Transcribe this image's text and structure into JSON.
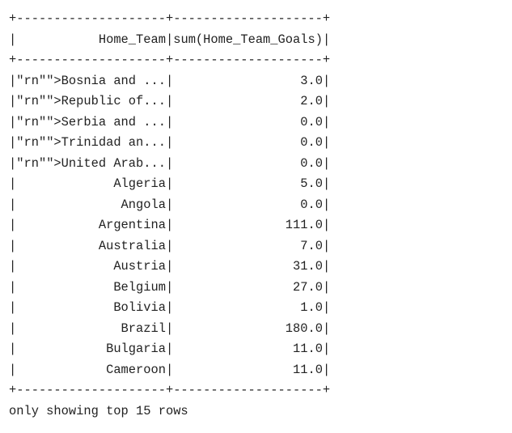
{
  "table": {
    "border": "+--------------------+--------------------+",
    "col_width": 20,
    "headers": [
      "Home_Team",
      "sum(Home_Team_Goals)"
    ],
    "rows": [
      {
        "team": "\"rn\"\">Bosnia and ...",
        "goals": "3.0"
      },
      {
        "team": "\"rn\"\">Republic of...",
        "goals": "2.0"
      },
      {
        "team": "\"rn\"\">Serbia and ...",
        "goals": "0.0"
      },
      {
        "team": "\"rn\"\">Trinidad an...",
        "goals": "0.0"
      },
      {
        "team": "\"rn\"\">United Arab...",
        "goals": "0.0"
      },
      {
        "team": "Algeria",
        "goals": "5.0"
      },
      {
        "team": "Angola",
        "goals": "0.0"
      },
      {
        "team": "Argentina",
        "goals": "111.0"
      },
      {
        "team": "Australia",
        "goals": "7.0"
      },
      {
        "team": "Austria",
        "goals": "31.0"
      },
      {
        "team": "Belgium",
        "goals": "27.0"
      },
      {
        "team": "Bolivia",
        "goals": "1.0"
      },
      {
        "team": "Brazil",
        "goals": "180.0"
      },
      {
        "team": "Bulgaria",
        "goals": "11.0"
      },
      {
        "team": "Cameroon",
        "goals": "11.0"
      }
    ]
  },
  "footer": "only showing top 15 rows"
}
